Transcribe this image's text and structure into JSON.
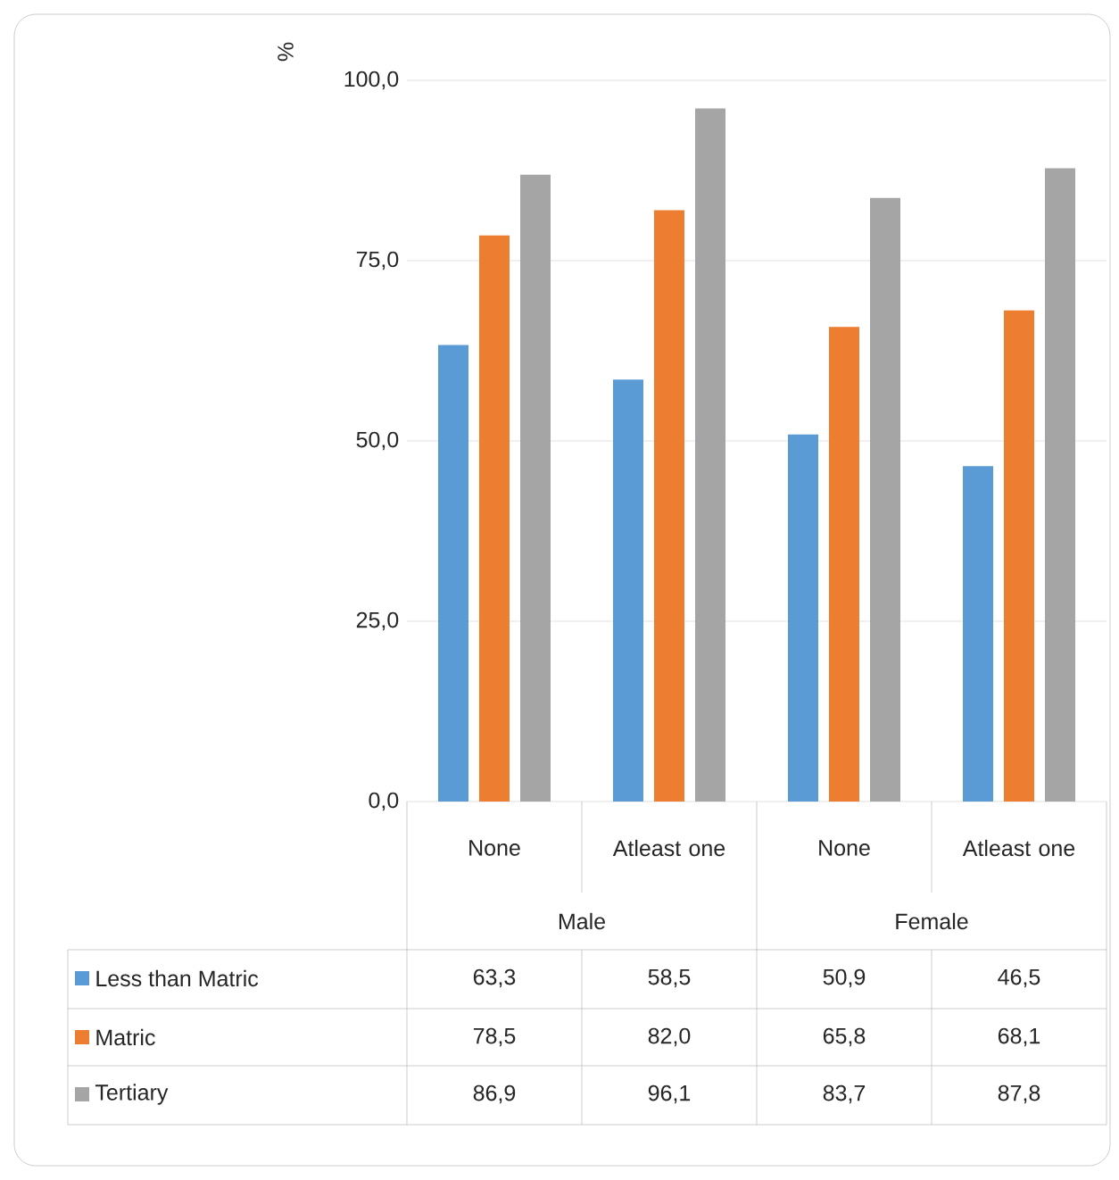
{
  "chart_data": {
    "type": "bar",
    "ylabel": "%",
    "categories": [
      "None",
      "Atleast one",
      "None",
      "Atleast one"
    ],
    "annotations": [
      "Male",
      "Female"
    ],
    "series": [
      {
        "name": "Less than Matric",
        "color": "#5b9bd5",
        "values": [
          63.3,
          58.5,
          50.9,
          46.5
        ],
        "value_labels": [
          "63,3",
          "58,5",
          "50,9",
          "46,5"
        ]
      },
      {
        "name": "Matric",
        "color": "#ed7d31",
        "values": [
          78.5,
          82.0,
          65.8,
          68.1
        ],
        "value_labels": [
          "78,5",
          "82,0",
          "65,8",
          "68,1"
        ]
      },
      {
        "name": "Tertiary",
        "color": "#a5a5a5",
        "values": [
          86.9,
          96.1,
          83.7,
          87.8
        ],
        "value_labels": [
          "86,9",
          "96,1",
          "83,7",
          "87,8"
        ]
      }
    ],
    "ylim": [
      0,
      100
    ],
    "yticks": [
      {
        "value": 0,
        "label": "0,0"
      },
      {
        "value": 25,
        "label": "25,0"
      },
      {
        "value": 50,
        "label": "50,0"
      },
      {
        "value": 75,
        "label": "75,0"
      },
      {
        "value": 100,
        "label": "100,0"
      }
    ],
    "grid": "y",
    "legend": "bottom"
  }
}
